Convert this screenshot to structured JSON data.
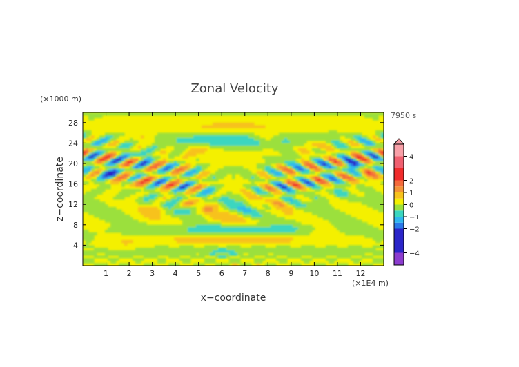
{
  "chart_data": {
    "type": "heatmap",
    "title": "Zonal Velocity",
    "xlabel": "x−coordinate",
    "ylabel": "z−coordinate",
    "x_unit": "(×1E4 m)",
    "y_unit": "(×1000 m)",
    "time_label": "7950 s",
    "xlim": [
      0,
      13
    ],
    "ylim": [
      0,
      30
    ],
    "x_ticks": [
      1,
      2,
      3,
      4,
      5,
      6,
      7,
      8,
      9,
      10,
      11,
      12
    ],
    "y_ticks": [
      4,
      8,
      12,
      16,
      20,
      24,
      28
    ],
    "colorbar": {
      "range": [
        -5,
        5
      ],
      "tick_values": [
        4,
        2,
        1,
        0,
        -1,
        -2,
        -4
      ],
      "tick_labels": [
        "4",
        "2",
        "1",
        "0",
        "−1",
        "−2",
        "−4"
      ],
      "colors": [
        {
          "from": -5,
          "to": -4,
          "color": "#8c3ccf"
        },
        {
          "from": -4,
          "to": -2,
          "color": "#2b25c9"
        },
        {
          "from": -2,
          "to": -1.5,
          "color": "#2a78e8"
        },
        {
          "from": -1.5,
          "to": -1,
          "color": "#2fb6f0"
        },
        {
          "from": -1,
          "to": -0.5,
          "color": "#3ad6c0"
        },
        {
          "from": -0.5,
          "to": 0,
          "color": "#9be03c"
        },
        {
          "from": 0,
          "to": 0.5,
          "color": "#f4f000"
        },
        {
          "from": 0.5,
          "to": 1,
          "color": "#f7c21c"
        },
        {
          "from": 1,
          "to": 1.5,
          "color": "#f39236"
        },
        {
          "from": 1.5,
          "to": 2,
          "color": "#f46a3a"
        },
        {
          "from": 2,
          "to": 3,
          "color": "#f02c2c"
        },
        {
          "from": 3,
          "to": 4,
          "color": "#f06070"
        },
        {
          "from": 4,
          "to": 5,
          "color": "#f8a0a8"
        }
      ]
    },
    "field_features": [
      {
        "x": 1.8,
        "z": 4.5,
        "value": 0.8
      },
      {
        "x": 3.1,
        "z": 11.0,
        "value": 1.4
      },
      {
        "x": 4.3,
        "z": 13.5,
        "value": -0.9
      },
      {
        "x": 2.1,
        "z": 16.5,
        "value": 1.6
      },
      {
        "x": 1.2,
        "z": 18.2,
        "value": -2.2
      },
      {
        "x": 2.4,
        "z": 21.5,
        "value": -1.5
      },
      {
        "x": 2.6,
        "z": 25.0,
        "value": 1.2
      },
      {
        "x": 5.0,
        "z": 23.0,
        "value": 1.3
      },
      {
        "x": 7.9,
        "z": 25.0,
        "value": 1.4
      },
      {
        "x": 8.6,
        "z": 21.0,
        "value": -1.2
      },
      {
        "x": 10.0,
        "z": 23.5,
        "value": 1.5
      },
      {
        "x": 11.6,
        "z": 19.5,
        "value": -2.0
      },
      {
        "x": 12.2,
        "z": 17.5,
        "value": 1.8
      },
      {
        "x": 11.0,
        "z": 14.0,
        "value": -1.0
      },
      {
        "x": 10.4,
        "z": 6.5,
        "value": 1.0
      },
      {
        "x": 9.0,
        "z": 9.0,
        "value": -0.8
      },
      {
        "x": 6.0,
        "z": 2.5,
        "value": -0.5
      }
    ]
  }
}
